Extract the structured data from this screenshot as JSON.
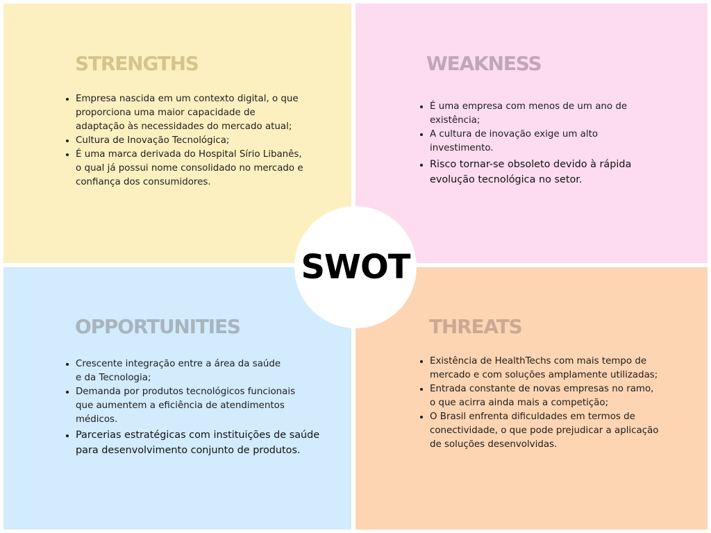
{
  "colors": {
    "strengths_bg": "#fdf0c0",
    "weakness_bg": "#fcdcee",
    "opportunities_bg": "#d2ebfd",
    "threats_bg": "#fdd5b2",
    "strengths_heading": "#d5c48c",
    "weakness_heading": "#c2a6b8",
    "opportunities_heading": "#a8b4bf",
    "threats_heading": "#cba994"
  },
  "center": {
    "label": "SWOT"
  },
  "strengths": {
    "title": "STRENGTHS",
    "items": [
      "Empresa nascida em um contexto digital, o que proporciona uma maior capacidade de adaptação às necessidades do mercado atual;",
      "Cultura de Inovação Tecnológica;",
      "É uma marca derivada do Hospital Sírio Libanês, o qual já possui nome consolidado no mercado e confiança dos consumidores."
    ]
  },
  "weakness": {
    "title": "WEAKNESS",
    "items": [
      "É uma empresa com menos de um ano de existência;",
      "A cultura de inovação exige um alto investimento.",
      "Risco tornar-se obsoleto devido à rápida evolução tecnológica no setor."
    ]
  },
  "opportunities": {
    "title": "OPPORTUNITIES",
    "items": [
      "Crescente integração entre a área da saúde e da Tecnologia;",
      "Demanda por produtos tecnológicos funcionais que aumentem a eficiência de atendimentos médicos.",
      "Parcerias estratégicas com instituições de saúde para desenvolvimento conjunto de produtos."
    ]
  },
  "threats": {
    "title": "THREATS",
    "items": [
      "Existência de HealthTechs com mais tempo de mercado e com soluções amplamente utilizadas;",
      "Entrada constante de novas empresas no ramo, o que acirra ainda mais a competição;",
      "O Brasil enfrenta dificuldades em termos de conectividade, o que pode prejudicar a aplicação de soluções desenvolvidas."
    ]
  }
}
